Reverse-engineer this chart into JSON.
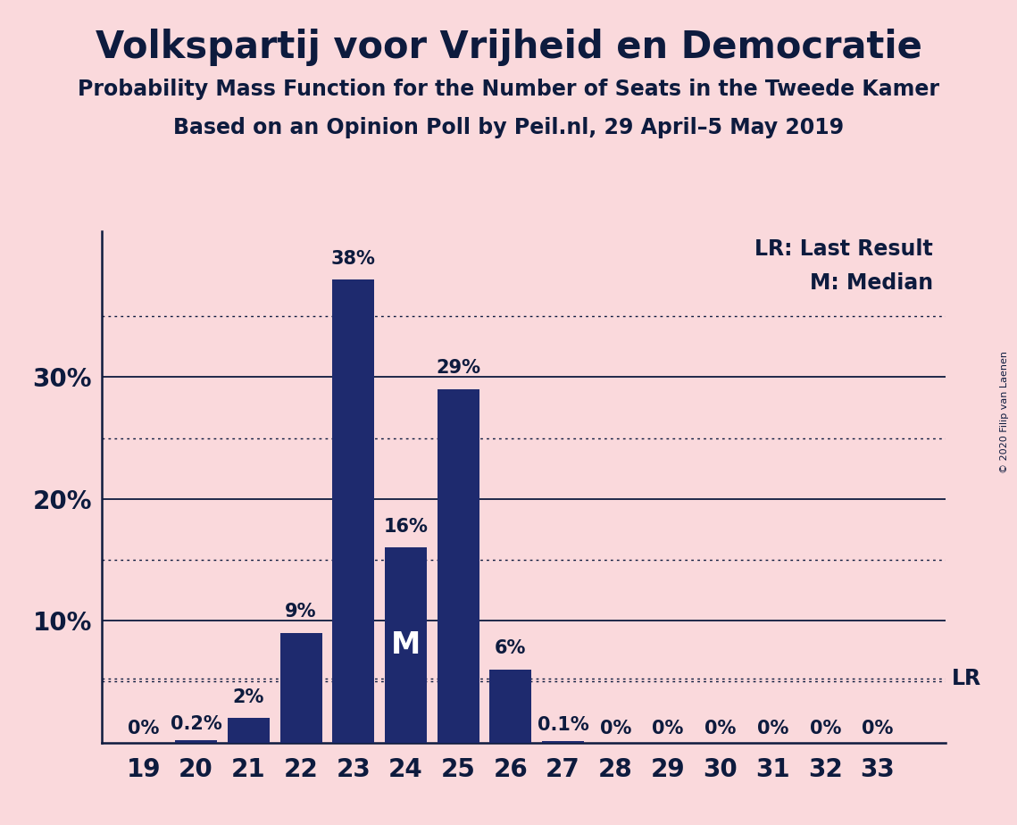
{
  "title": "Volkspartij voor Vrijheid en Democratie",
  "subtitle1": "Probability Mass Function for the Number of Seats in the Tweede Kamer",
  "subtitle2": "Based on an Opinion Poll by Peil.nl, 29 April–5 May 2019",
  "copyright": "© 2020 Filip van Laenen",
  "seats": [
    19,
    20,
    21,
    22,
    23,
    24,
    25,
    26,
    27,
    28,
    29,
    30,
    31,
    32,
    33
  ],
  "probabilities": [
    0.0,
    0.2,
    2.0,
    9.0,
    38.0,
    16.0,
    29.0,
    6.0,
    0.1,
    0.0,
    0.0,
    0.0,
    0.0,
    0.0,
    0.0
  ],
  "bar_labels": [
    "0%",
    "0.2%",
    "2%",
    "9%",
    "38%",
    "16%",
    "29%",
    "6%",
    "0.1%",
    "0%",
    "0%",
    "0%",
    "0%",
    "0%",
    "0%"
  ],
  "bar_color": "#1E2A6E",
  "background_color": "#FAD9DC",
  "median_seat": 24,
  "median_label": "M",
  "lr_value": 5.26,
  "lr_label": "LR",
  "legend_lr": "LR: Last Result",
  "legend_m": "M: Median",
  "ylim_max": 42,
  "solid_yticks": [
    10,
    20,
    30
  ],
  "dotted_yticks": [
    5,
    15,
    25,
    35
  ],
  "title_fontsize": 30,
  "subtitle_fontsize": 17,
  "tick_fontsize": 20,
  "bar_label_fontsize": 15,
  "legend_fontsize": 17,
  "median_fontsize": 24,
  "copyright_fontsize": 8
}
